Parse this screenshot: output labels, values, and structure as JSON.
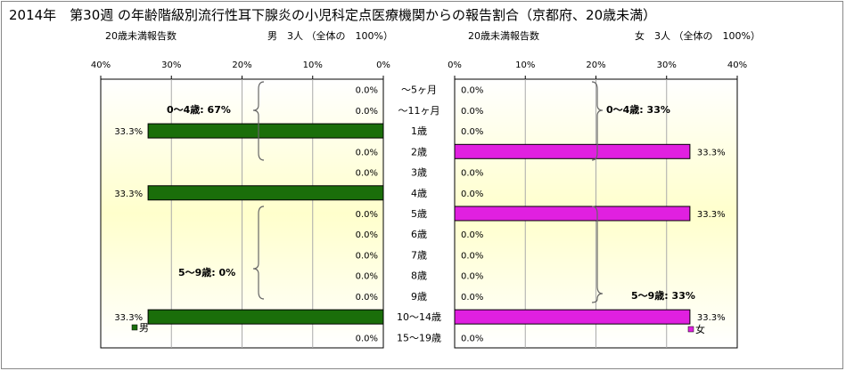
{
  "chart_data": {
    "type": "bar",
    "title": "2014年　第30週 の年齢階級別流行性耳下腺炎の小児科定点医療機関からの報告割合（京都府、20歳未満）",
    "left_panel": {
      "subtitle_left": "20歳未満報告数",
      "subtitle_right": "男　3人 （全体の　100%）",
      "series_name": "男",
      "color": "#1a6e0a",
      "groups": [
        {
          "label": "0～4歳: 67%"
        },
        {
          "label": "5～9歳: 0%"
        }
      ]
    },
    "right_panel": {
      "subtitle_left": "20歳未満報告数",
      "subtitle_right": "女　3人 （全体の　100%）",
      "series_name": "女",
      "color": "#e020e0",
      "groups": [
        {
          "label": "0～4歳: 33%"
        },
        {
          "label": "5～9歳: 33%"
        }
      ]
    },
    "categories": [
      "～5ヶ月",
      "～11ヶ月",
      "1歳",
      "2歳",
      "3歳",
      "4歳",
      "5歳",
      "6歳",
      "7歳",
      "8歳",
      "9歳",
      "10～14歳",
      "15～19歳"
    ],
    "series": [
      {
        "name": "男",
        "values": [
          0.0,
          0.0,
          33.3,
          0.0,
          0.0,
          33.3,
          0.0,
          0.0,
          0.0,
          0.0,
          0.0,
          33.3,
          0.0
        ]
      },
      {
        "name": "女",
        "values": [
          0.0,
          0.0,
          0.0,
          33.3,
          0.0,
          0.0,
          33.3,
          0.0,
          0.0,
          0.0,
          0.0,
          33.3,
          0.0
        ]
      }
    ],
    "value_labels": {
      "male": [
        "0.0%",
        "0.0%",
        "33.3%",
        "0.0%",
        "0.0%",
        "33.3%",
        "0.0%",
        "0.0%",
        "0.0%",
        "0.0%",
        "0.0%",
        "33.3%",
        "0.0%"
      ],
      "female": [
        "0.0%",
        "0.0%",
        "0.0%",
        "33.3%",
        "0.0%",
        "0.0%",
        "33.3%",
        "0.0%",
        "0.0%",
        "0.0%",
        "0.0%",
        "33.3%",
        "0.0%"
      ]
    },
    "xlim": [
      0,
      40
    ],
    "xticks": [
      "0%",
      "10%",
      "20%",
      "30%",
      "40%"
    ],
    "grid": true
  }
}
